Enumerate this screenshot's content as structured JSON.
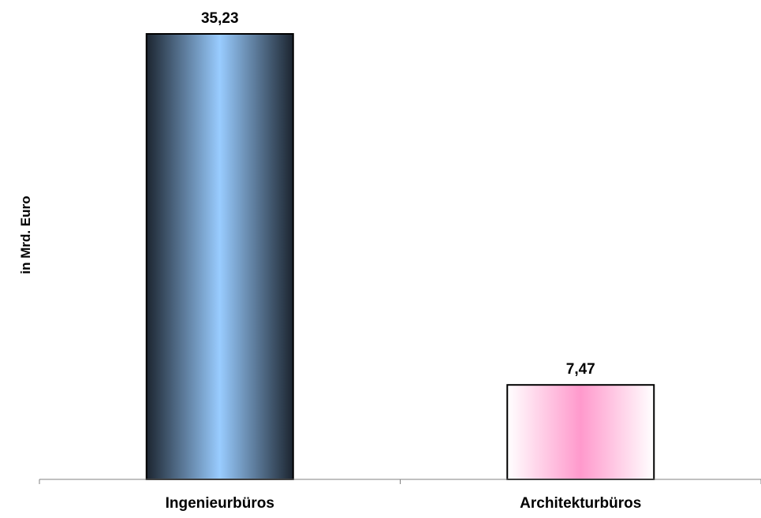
{
  "chart_data": {
    "type": "bar",
    "title": "",
    "xlabel": "",
    "ylabel": "in Mrd. Euro",
    "categories": [
      "Ingenieurbüros",
      "Architekturbüros"
    ],
    "values": [
      35.23,
      7.47
    ],
    "value_labels": [
      "35,23",
      "7,47"
    ],
    "ylim": [
      0,
      35.23
    ],
    "grid": false,
    "legend": "none",
    "bar_styles": [
      {
        "edge": "#1c2530",
        "center": "#99ccff",
        "outline": "#000000"
      },
      {
        "edge": "#ffffff",
        "center": "#ff99cc",
        "outline": "#000000"
      }
    ]
  }
}
